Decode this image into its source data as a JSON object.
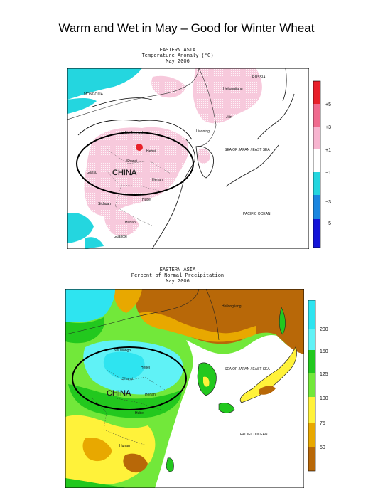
{
  "slide": {
    "title": "Warm and Wet in May – Good for Winter Wheat"
  },
  "temperature_map": {
    "header": [
      "EASTERN ASIA",
      "Temperature Anomaly (°C)",
      "May 2006"
    ],
    "legend": {
      "ticks": [
        "+5",
        "+3",
        "+1",
        "−1",
        "−3",
        "−5"
      ],
      "colors": [
        "#e8202a",
        "#f06a8e",
        "#f7b4cf",
        "#ffffff",
        "#24d6df",
        "#1a86e0",
        "#1414d8"
      ]
    },
    "labels": {
      "russia": "RUSSIA",
      "mongolia": "MONGOLIA",
      "heilongjiang": "Heilongjiang",
      "jilin": "Jilin",
      "liaoning": "Liaoning",
      "nei_mongol": "Nei Mongol",
      "hebei": "Hebei",
      "shanxi": "Shanxi",
      "gansu": "Gansu",
      "henan": "Henan",
      "hubei": "Hubei",
      "sichuan": "Sichuan",
      "hunan": "Hunan",
      "guangxi": "Guangxi",
      "china": "CHINA",
      "sea_of_japan": "SEA OF JAPAN / EAST SEA",
      "pacific_ocean": "PACIFIC OCEAN"
    }
  },
  "precipitation_map": {
    "header": [
      "EASTERN ASIA",
      "Percent of Normal Precipitation",
      "May 2006"
    ],
    "legend": {
      "ticks": [
        "200",
        "150",
        "125",
        "100",
        "75",
        "50"
      ],
      "colors": [
        "#2ee4f0",
        "#60f2f6",
        "#22c81e",
        "#72e83a",
        "#fff23a",
        "#e8a800",
        "#b86808"
      ]
    },
    "labels": {
      "heilongjiang": "Heilongjiang",
      "nei_mongol": "Nei Mongol",
      "hebei": "Hebei",
      "shanxi": "Shanxi",
      "henan": "Henan",
      "hubei": "Hubei",
      "hunan": "Hunan",
      "china": "CHINA",
      "sea_of_japan": "SEA OF JAPAN / EAST SEA",
      "pacific_ocean": "PACIFIC OCEAN"
    }
  }
}
